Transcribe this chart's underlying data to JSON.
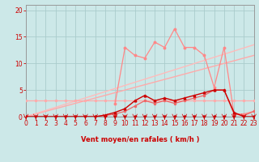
{
  "background_color": "#cce8e8",
  "grid_color": "#aacccc",
  "text_color": "#cc0000",
  "xlabel": "Vent moyen/en rafales ( km/h )",
  "xlim": [
    0,
    23
  ],
  "ylim": [
    0,
    21
  ],
  "yticks": [
    0,
    5,
    10,
    15,
    20
  ],
  "xticks": [
    0,
    1,
    2,
    3,
    4,
    5,
    6,
    7,
    8,
    9,
    10,
    11,
    12,
    13,
    14,
    15,
    16,
    17,
    18,
    19,
    20,
    21,
    22,
    23
  ],
  "trend1_x": [
    0,
    23
  ],
  "trend1_y": [
    0,
    11.5
  ],
  "trend2_x": [
    0,
    23
  ],
  "trend2_y": [
    0,
    13.5
  ],
  "horiz_x": [
    0,
    1,
    2,
    3,
    4,
    5,
    6,
    7,
    8,
    9,
    10,
    11,
    12,
    13,
    14,
    15,
    16,
    17,
    18,
    19,
    20,
    21,
    22,
    23
  ],
  "horiz_y": [
    3,
    3,
    3,
    3,
    3,
    3,
    3,
    3,
    3,
    3,
    3,
    3,
    3,
    3,
    3,
    3,
    3,
    3,
    3,
    3,
    3,
    3,
    3,
    3
  ],
  "light_jagged_x": [
    9,
    10,
    11,
    12,
    13,
    14,
    15,
    16,
    17,
    18,
    19,
    20,
    21,
    22,
    23
  ],
  "light_jagged_y": [
    2.5,
    13,
    11.5,
    11,
    14,
    13,
    16.5,
    13,
    13,
    11.5,
    5.5,
    13,
    0.5,
    0.5,
    1
  ],
  "dark_main_x": [
    0,
    1,
    2,
    3,
    4,
    5,
    6,
    7,
    8,
    9,
    10,
    11,
    12,
    13,
    14,
    15,
    16,
    17,
    18,
    19,
    20,
    21,
    22,
    23
  ],
  "dark_main_y": [
    0,
    0,
    0,
    0,
    0,
    0,
    0,
    0,
    0.3,
    0.8,
    1.5,
    3,
    4,
    3,
    3.5,
    3,
    3.5,
    4,
    4.5,
    5,
    5,
    0.8,
    0,
    0
  ],
  "dark_zero_x": [
    0,
    1,
    2,
    3,
    4,
    5,
    6,
    7,
    8,
    9,
    10,
    11,
    12,
    13,
    14,
    15,
    16,
    17,
    18,
    19,
    20,
    21,
    22,
    23
  ],
  "dark_zero_y": [
    0,
    0,
    0,
    0,
    0,
    0,
    0,
    0,
    0,
    0,
    0,
    0,
    0,
    0,
    0,
    0,
    0,
    0,
    0,
    0,
    0,
    0,
    0,
    0
  ],
  "light_lower_x": [
    0,
    1,
    2,
    3,
    4,
    5,
    6,
    7,
    8,
    9,
    10,
    11,
    12,
    13,
    14,
    15,
    16,
    17,
    18,
    19,
    20,
    21,
    22,
    23
  ],
  "light_lower_y": [
    0,
    0,
    0,
    0,
    0,
    0,
    0,
    0,
    0.2,
    0.5,
    1,
    2,
    3,
    2.5,
    3,
    2.5,
    3,
    3.5,
    4,
    5,
    5,
    0.5,
    0.2,
    1
  ],
  "wind_arrows_x": [
    0,
    1,
    2,
    3,
    4,
    5,
    6,
    7,
    8,
    9,
    10,
    11,
    12,
    13,
    14,
    15,
    16,
    17,
    18,
    19,
    20,
    21,
    22,
    23
  ]
}
